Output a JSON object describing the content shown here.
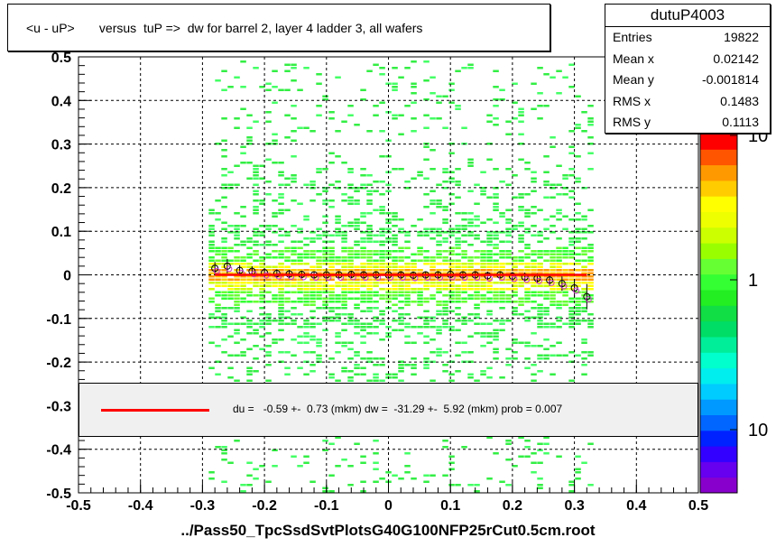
{
  "title": "<u - uP>       versus  tuP =>  dw for barrel 2, layer 4 ladder 3, all wafers",
  "stats": {
    "name": "dutuP4003",
    "rows": [
      {
        "label": "Entries",
        "value": "19822"
      },
      {
        "label": "Mean x",
        "value": "0.02142"
      },
      {
        "label": "Mean y",
        "value": "-0.001814"
      },
      {
        "label": "RMS x",
        "value": "0.1483"
      },
      {
        "label": "RMS y",
        "value": "0.1113"
      }
    ]
  },
  "fit_text": "du =   -0.59 +-  0.73 (mkm) dw =  -31.29 +-  5.92 (mkm) prob = 0.007",
  "xlabel": "../Pass50_TpcSsdSvtPlotsG40G100NFP25rCut0.5cm.root",
  "chart_data": {
    "type": "heatmap",
    "title": "<u - uP>       versus  tuP =>  dw for barrel 2, layer 4 ladder 3, all wafers",
    "xlabel": "../Pass50_TpcSsdSvtPlotsG40G100NFP25rCut0.5cm.root",
    "ylabel": "",
    "xlim": [
      -0.5,
      0.5
    ],
    "ylim": [
      -0.5,
      0.5
    ],
    "x_ticks": [
      "-0.5",
      "-0.4",
      "-0.3",
      "-0.2",
      "-0.1",
      "0",
      "0.1",
      "0.2",
      "0.3",
      "0.4",
      "0.5"
    ],
    "y_ticks": [
      "-0.5",
      "-0.4",
      "-0.3",
      "-0.2",
      "-0.1",
      "0",
      "0.1",
      "0.2",
      "0.3",
      "0.4",
      "0.5"
    ],
    "grid": true,
    "color_scale": {
      "log": true,
      "tick_labels": [
        "10",
        "1",
        "10"
      ]
    },
    "occupied_x_range": [
      -0.29,
      0.33
    ],
    "profile_points": {
      "x": [
        -0.28,
        -0.26,
        -0.24,
        -0.22,
        -0.2,
        -0.18,
        -0.16,
        -0.14,
        -0.12,
        -0.1,
        -0.08,
        -0.06,
        -0.04,
        -0.02,
        0.0,
        0.02,
        0.04,
        0.06,
        0.08,
        0.1,
        0.12,
        0.14,
        0.16,
        0.18,
        0.2,
        0.22,
        0.24,
        0.26,
        0.28,
        0.3,
        0.32
      ],
      "y": [
        0.015,
        0.02,
        0.01,
        0.008,
        0.005,
        0.003,
        0.002,
        0.001,
        0.0,
        0.0,
        0.0,
        0.001,
        0.0,
        0.0,
        0.0,
        0.0,
        -0.001,
        0.0,
        0.0,
        0.001,
        0.0,
        0.0,
        -0.002,
        0.0,
        -0.003,
        -0.005,
        -0.008,
        -0.012,
        -0.02,
        -0.03,
        -0.05
      ]
    },
    "fit_line": {
      "x": [
        -0.28,
        0.32
      ],
      "y": [
        0.0,
        0.0
      ],
      "color": "#ff0000"
    },
    "fit_text": "du =   -0.59 +-  0.73 (mkm) dw =  -31.29 +-  5.92 (mkm) prob = 0.007"
  }
}
